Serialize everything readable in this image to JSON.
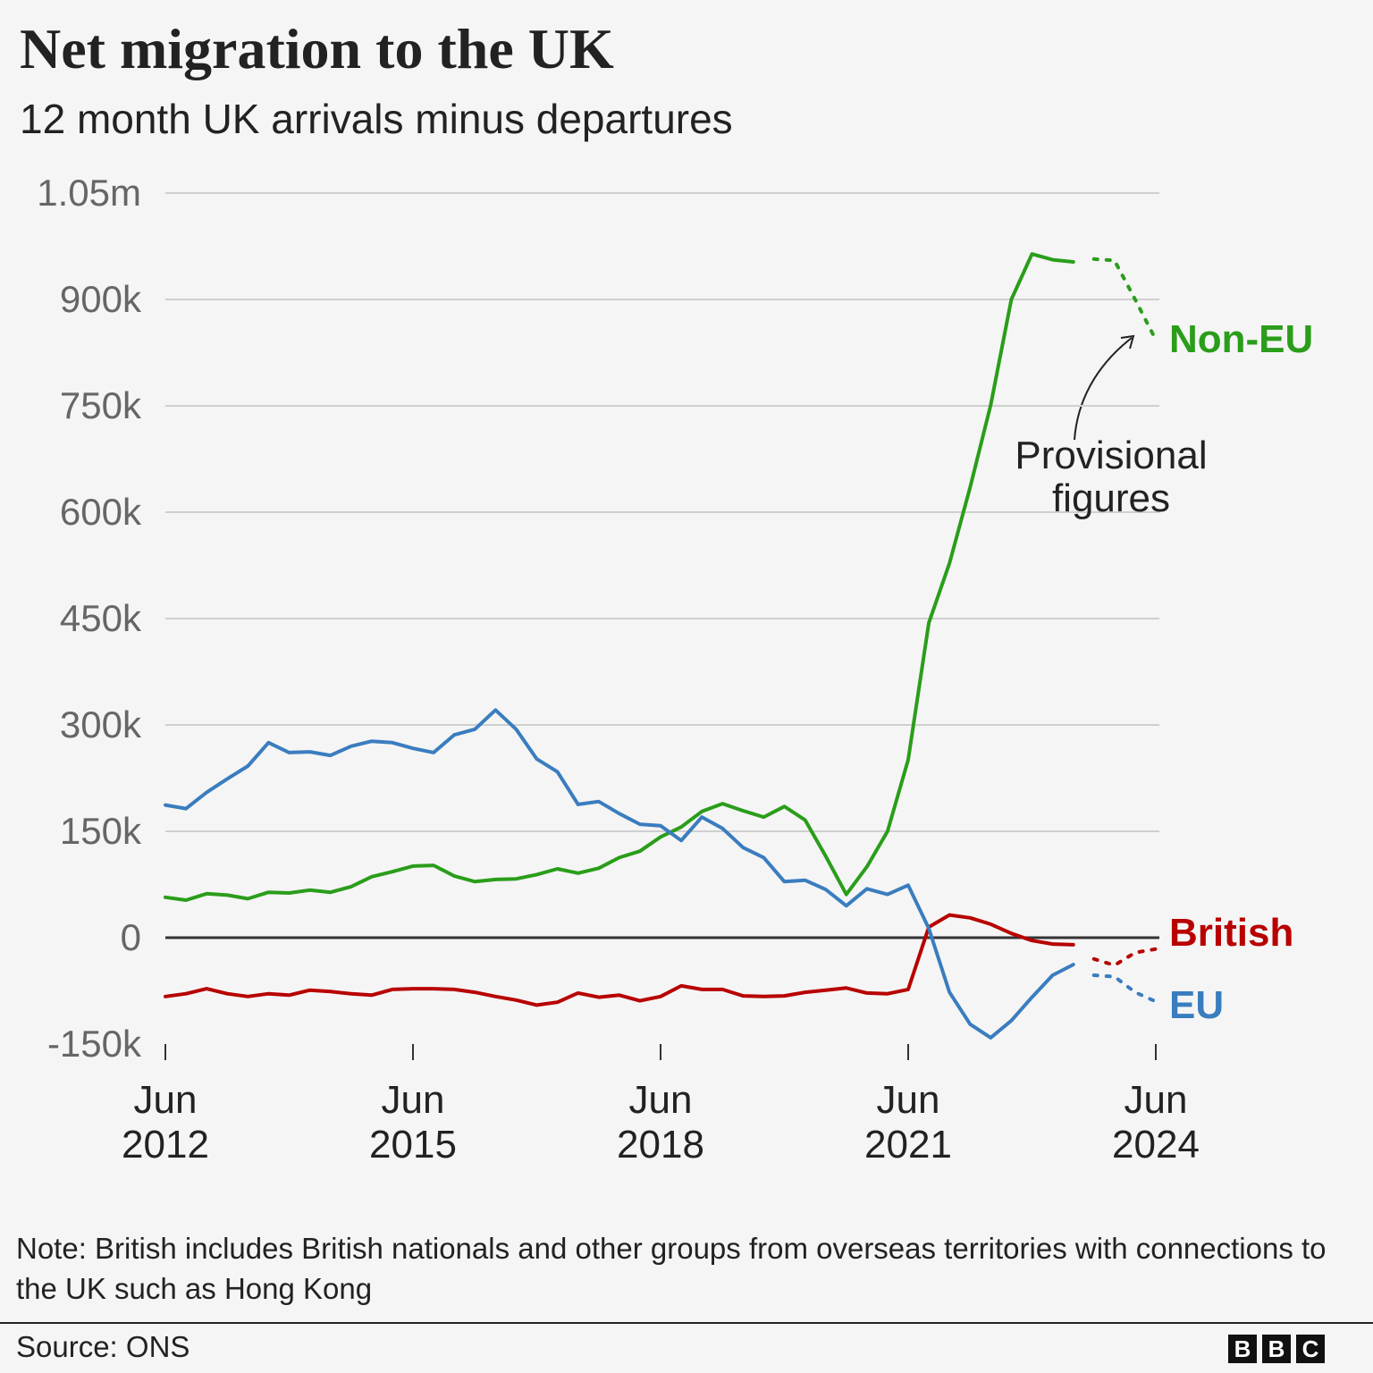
{
  "chart_data": {
    "type": "line",
    "title": "Net migration to the UK",
    "subtitle": "12 month UK arrivals minus departures",
    "x": [
      2012.5,
      2012.75,
      2013,
      2013.25,
      2013.5,
      2013.75,
      2014,
      2014.25,
      2014.5,
      2014.75,
      2015,
      2015.25,
      2015.5,
      2015.75,
      2016,
      2016.25,
      2016.5,
      2016.75,
      2017,
      2017.25,
      2017.5,
      2017.75,
      2018,
      2018.25,
      2018.5,
      2018.75,
      2019,
      2019.25,
      2019.5,
      2019.75,
      2020,
      2020.25,
      2020.5,
      2020.75,
      2021,
      2021.25,
      2021.5,
      2021.75,
      2022,
      2022.25,
      2022.5,
      2022.75,
      2023,
      2023.25,
      2023.5,
      2023.75,
      2024,
      2024.25,
      2024.5
    ],
    "series": [
      {
        "name": "Non-EU",
        "color": "#2a9d1a",
        "values": [
          57000,
          53000,
          62000,
          60000,
          55000,
          64000,
          63000,
          67000,
          64000,
          72000,
          86000,
          93000,
          101000,
          102000,
          87000,
          79000,
          82000,
          83000,
          89000,
          97000,
          91000,
          98000,
          113000,
          122000,
          142000,
          156000,
          178000,
          189000,
          179000,
          170000,
          185000,
          166000,
          115000,
          61000,
          100000,
          150000,
          251000,
          444000,
          528000,
          635000,
          751000,
          900000,
          964000,
          956000,
          953000,
          957000,
          955000,
          900000,
          843000
        ]
      },
      {
        "name": "British",
        "color": "#b80000",
        "values": [
          -83000,
          -79000,
          -72000,
          -79000,
          -83000,
          -79000,
          -81000,
          -74000,
          -76000,
          -79000,
          -81000,
          -73000,
          -72000,
          -72000,
          -73000,
          -77000,
          -83000,
          -88000,
          -95000,
          -91000,
          -78000,
          -84000,
          -81000,
          -89000,
          -83000,
          -68000,
          -73000,
          -73000,
          -82000,
          -83000,
          -82000,
          -77000,
          -74000,
          -71000,
          -78000,
          -79000,
          -73000,
          15000,
          32000,
          28000,
          19000,
          6000,
          -4000,
          -9000,
          -10000,
          -30000,
          -39000,
          -21000,
          -16000
        ]
      },
      {
        "name": "EU",
        "color": "#3a7dbf",
        "values": [
          187000,
          182000,
          205000,
          224000,
          242000,
          275000,
          261000,
          262000,
          257000,
          270000,
          277000,
          275000,
          267000,
          261000,
          286000,
          294000,
          321000,
          294000,
          252000,
          234000,
          188000,
          192000,
          175000,
          160000,
          158000,
          137000,
          170000,
          154000,
          127000,
          113000,
          79000,
          81000,
          68000,
          45000,
          69000,
          61000,
          74000,
          13000,
          -77000,
          -122000,
          -141000,
          -117000,
          -84000,
          -53000,
          -38000,
          -53000,
          -55000,
          -77000,
          -90000
        ]
      }
    ],
    "provisional_from": 2023.75,
    "annotation": "Provisional figures",
    "xlim": [
      2012.5,
      2024.5
    ],
    "xticks": [
      {
        "value": 2012.5,
        "label": "Jun 2012"
      },
      {
        "value": 2015.5,
        "label": "Jun 2015"
      },
      {
        "value": 2018.5,
        "label": "Jun 2018"
      },
      {
        "value": 2021.5,
        "label": "Jun 2021"
      },
      {
        "value": 2024.5,
        "label": "Jun 2024"
      }
    ],
    "ylim": [
      -150000,
      1050000
    ],
    "yticks": [
      {
        "value": -150000,
        "label": "-150k"
      },
      0,
      {
        "value": 150000,
        "label": "150k"
      },
      {
        "value": 300000,
        "label": "300k"
      },
      {
        "value": 450000,
        "label": "450k"
      },
      {
        "value": 600000,
        "label": "600k"
      },
      {
        "value": 750000,
        "label": "750k"
      },
      {
        "value": 900000,
        "label": "900k"
      },
      {
        "value": 1050000,
        "label": "1.05m"
      }
    ],
    "grid": true,
    "note": "Note: British includes British nationals and other groups from overseas territories with connections to the UK such as Hong Kong",
    "source": "Source: ONS",
    "logo": [
      "B",
      "B",
      "C"
    ]
  }
}
